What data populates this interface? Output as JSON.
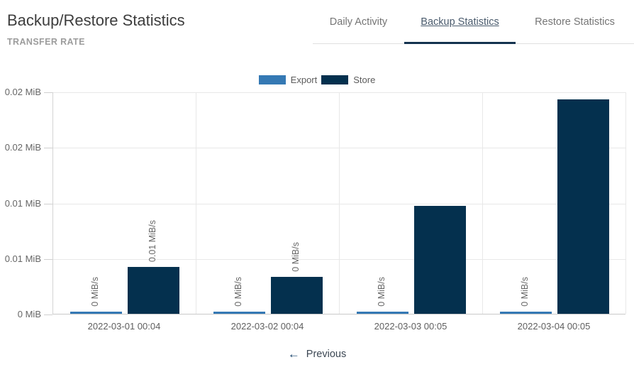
{
  "page": {
    "title": "Backup/Restore Statistics",
    "subtitle": "TRANSFER RATE"
  },
  "tabs": [
    {
      "label": "Daily Activity",
      "active": false
    },
    {
      "label": "Backup Statistics",
      "active": true
    },
    {
      "label": "Restore Statistics",
      "active": false
    }
  ],
  "legend": [
    {
      "label": "Export",
      "color": "#3579b4"
    },
    {
      "label": "Store",
      "color": "#04304e"
    }
  ],
  "icons": {
    "previous_arrow": "←"
  },
  "pagination": {
    "previous_label": "Previous"
  },
  "colors": {
    "accent_navy": "#14334f",
    "export_blue": "#3579b4",
    "store_navy": "#04304e",
    "grid": "#e8e8e8",
    "axis": "#c9c9c9"
  },
  "chart_data": {
    "type": "bar",
    "title": "Transfer Rate",
    "categories": [
      "2022-03-01 00:04",
      "2022-03-02 00:04",
      "2022-03-03 00:05",
      "2022-03-04 00:05"
    ],
    "series": [
      {
        "name": "Export",
        "color": "#3579b4",
        "values": [
          0.0002,
          0.0002,
          0.0002,
          0.0002
        ],
        "bar_labels": [
          "0 MiB/s",
          "0 MiB/s",
          "0 MiB/s",
          "0 MiB/s"
        ]
      },
      {
        "name": "Store",
        "color": "#04304e",
        "values": [
          0.0042,
          0.0033,
          0.0097,
          0.0193
        ],
        "bar_labels": [
          "0.01 MiB/s",
          "0 MiB/s",
          null,
          null
        ]
      }
    ],
    "xlabel": "",
    "ylabel": "",
    "ylim": [
      0,
      0.02
    ],
    "ytick_labels_bottom_to_top": [
      "0 MiB",
      "0.01 MiB",
      "0.01 MiB",
      "0.02 MiB",
      "0.02 MiB"
    ],
    "grid": true,
    "legend_position": "top-center"
  }
}
